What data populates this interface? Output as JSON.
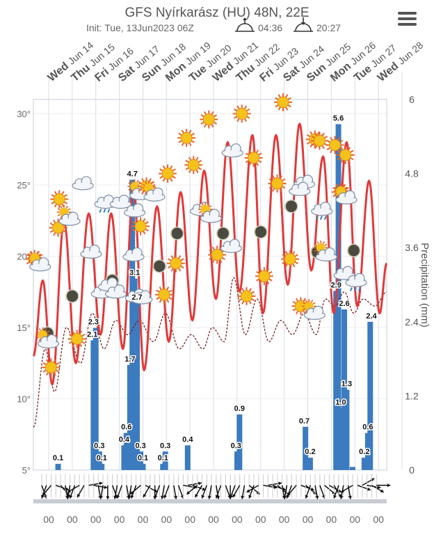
{
  "header": {
    "title": "GFS Nyírkarász (HU) 48N, 22E",
    "init": "Init: Tue, 13Jun2023 06Z",
    "sunrise": "04:36",
    "sunset": "20:27",
    "menu_icon": "hamburger-menu-icon"
  },
  "chart_data": {
    "type": "line",
    "title": "GFS Nyírkarász (HU) 48N, 22E",
    "ylabel_right": "Precipitation (mm)",
    "y_left_range": [
      5,
      31
    ],
    "y_left_ticks": [
      "5°",
      "10°",
      "15°",
      "20°",
      "25°",
      "30°"
    ],
    "y_right_range": [
      0,
      6
    ],
    "y_right_ticks": [
      "0",
      "1.2",
      "2.4",
      "3.6",
      "4.8",
      "6"
    ],
    "days": [
      {
        "dow": "Wed",
        "date": "Jun 14"
      },
      {
        "dow": "Thu",
        "date": "Jun 15"
      },
      {
        "dow": "Fri",
        "date": "Jun 16"
      },
      {
        "dow": "Sat",
        "date": "Jun 17"
      },
      {
        "dow": "Sun",
        "date": "Jun 18"
      },
      {
        "dow": "Mon",
        "date": "Jun 19"
      },
      {
        "dow": "Tue",
        "date": "Jun 20"
      },
      {
        "dow": "Wed",
        "date": "Jun 21"
      },
      {
        "dow": "Thu",
        "date": "Jun 22"
      },
      {
        "dow": "Fri",
        "date": "Jun 23"
      },
      {
        "dow": "Sat",
        "date": "Jun 24"
      },
      {
        "dow": "Sun",
        "date": "Jun 25"
      },
      {
        "dow": "Mon",
        "date": "Jun 26"
      },
      {
        "dow": "Tue",
        "date": "Jun 27"
      },
      {
        "dow": "Wed",
        "date": "Jun 28"
      }
    ],
    "x_tick_label": "00",
    "series": [
      {
        "name": "Temperature",
        "color": "#e03a3a",
        "extrema": [
          [
            0,
            13
          ],
          [
            0.4,
            18.3
          ],
          [
            0.8,
            11
          ],
          [
            1.3,
            22.5
          ],
          [
            1.8,
            12.5
          ],
          [
            2.35,
            23
          ],
          [
            2.85,
            14.5
          ],
          [
            3.3,
            23
          ],
          [
            3.8,
            13.5
          ],
          [
            4.25,
            25
          ],
          [
            4.7,
            12
          ],
          [
            5.25,
            23.5
          ],
          [
            5.75,
            14
          ],
          [
            6.25,
            24.5
          ],
          [
            6.75,
            15.5
          ],
          [
            7.25,
            26
          ],
          [
            7.75,
            17
          ],
          [
            8.25,
            28
          ],
          [
            8.75,
            17.5
          ],
          [
            9.3,
            28.5
          ],
          [
            9.75,
            16
          ],
          [
            10.3,
            28.5
          ],
          [
            10.8,
            18
          ],
          [
            11.3,
            29.3
          ],
          [
            11.8,
            19
          ],
          [
            12.3,
            27
          ],
          [
            12.75,
            16
          ],
          [
            13.3,
            28
          ],
          [
            13.75,
            16.5
          ],
          [
            14.25,
            25.3
          ],
          [
            14.7,
            16
          ],
          [
            15,
            19.5
          ]
        ]
      },
      {
        "name": "Dew point",
        "color": "#7a1f1f",
        "extrema": [
          [
            0,
            8
          ],
          [
            0.5,
            13.5
          ],
          [
            0.9,
            10.5
          ],
          [
            1.4,
            15
          ],
          [
            2,
            12.5
          ],
          [
            2.5,
            16
          ],
          [
            3,
            13.5
          ],
          [
            3.5,
            15.5
          ],
          [
            4,
            14.5
          ],
          [
            4.5,
            15.5
          ],
          [
            5.1,
            14
          ],
          [
            5.6,
            16
          ],
          [
            6.2,
            13.5
          ],
          [
            6.7,
            14.5
          ],
          [
            7.2,
            13.5
          ],
          [
            7.6,
            15
          ],
          [
            8.1,
            14
          ],
          [
            8.5,
            18.5
          ],
          [
            9,
            14.5
          ],
          [
            9.5,
            17
          ],
          [
            10,
            14
          ],
          [
            10.5,
            15.5
          ],
          [
            11,
            14.5
          ],
          [
            11.5,
            16
          ],
          [
            12,
            14.5
          ],
          [
            12.4,
            17
          ],
          [
            12.8,
            16.5
          ],
          [
            13.2,
            17.5
          ],
          [
            13.6,
            16
          ],
          [
            14,
            17
          ],
          [
            14.5,
            16.5
          ],
          [
            15,
            17.5
          ]
        ]
      },
      {
        "name": "Precipitation",
        "color": "#3c7bbf",
        "bars": [
          [
            1.05,
            0.1
          ],
          [
            2.55,
            2.1
          ],
          [
            2.65,
            2.3
          ],
          [
            2.8,
            0.3
          ],
          [
            2.9,
            0.1
          ],
          [
            3.85,
            0.4
          ],
          [
            3.95,
            0.6
          ],
          [
            4.1,
            1.7
          ],
          [
            4.2,
            4.7
          ],
          [
            4.3,
            3.1
          ],
          [
            4.4,
            2.7
          ],
          [
            4.55,
            0.3
          ],
          [
            4.65,
            0.1
          ],
          [
            5.5,
            0.1
          ],
          [
            5.6,
            0.3
          ],
          [
            6.55,
            0.4
          ],
          [
            8.65,
            0.3
          ],
          [
            8.75,
            0.9
          ],
          [
            11.55,
            0.7
          ],
          [
            11.75,
            0.2
          ],
          [
            12.85,
            2.9
          ],
          [
            12.95,
            5.6
          ],
          [
            13.1,
            1.0
          ],
          [
            13.2,
            2.6
          ],
          [
            13.3,
            1.3
          ],
          [
            13.55,
            0.05
          ],
          [
            14.05,
            0.2
          ],
          [
            14.2,
            0.6
          ],
          [
            14.3,
            2.4
          ]
        ],
        "labels": [
          [
            1.05,
            0.1,
            "0.1"
          ],
          [
            2.5,
            2.1,
            "2.1"
          ],
          [
            2.55,
            2.3,
            "2.3"
          ],
          [
            2.8,
            0.3,
            "0.3"
          ],
          [
            2.9,
            0.1,
            "0.1"
          ],
          [
            3.85,
            0.4,
            "0.4"
          ],
          [
            3.95,
            0.6,
            "0.6"
          ],
          [
            4.1,
            1.7,
            "1.7"
          ],
          [
            4.2,
            4.7,
            "4.7"
          ],
          [
            4.3,
            3.1,
            "3.1"
          ],
          [
            4.4,
            2.7,
            "2.7"
          ],
          [
            4.55,
            0.3,
            "0.3"
          ],
          [
            4.65,
            0.1,
            "0.1"
          ],
          [
            5.5,
            0.1,
            "0.1"
          ],
          [
            5.6,
            0.3,
            "0.3"
          ],
          [
            6.55,
            0.4,
            "0.4"
          ],
          [
            8.6,
            0.3,
            "0.3"
          ],
          [
            8.75,
            0.9,
            "0.9"
          ],
          [
            11.5,
            0.7,
            "0.7"
          ],
          [
            11.75,
            0.2,
            "0.2"
          ],
          [
            12.85,
            2.9,
            "2.9"
          ],
          [
            12.95,
            5.6,
            "5.6"
          ],
          [
            13.05,
            1.0,
            "1.0"
          ],
          [
            13.2,
            2.6,
            "2.6"
          ],
          [
            13.3,
            1.3,
            "1.3"
          ],
          [
            14.05,
            0.2,
            "0.2"
          ],
          [
            14.2,
            0.6,
            "0.6"
          ],
          [
            14.35,
            2.4,
            "2.4"
          ]
        ]
      }
    ],
    "weather_icons": [
      [
        "sun-icon",
        0.05,
        19.8
      ],
      [
        "partly-cloudy-icon",
        0.2,
        19.6
      ],
      [
        "moon-icon",
        0.6,
        14.6
      ],
      [
        "partly-cloudy-icon",
        0.55,
        14.2
      ],
      [
        "sun-icon",
        0.75,
        12.2
      ],
      [
        "sun-icon",
        1.1,
        24
      ],
      [
        "sun-icon",
        1.05,
        22
      ],
      [
        "moon-icon",
        1.65,
        17.2
      ],
      [
        "partly-cloudy-icon",
        1.45,
        22.8
      ],
      [
        "sun-icon",
        1.85,
        14.2
      ],
      [
        "cloud-icon",
        2.1,
        25.1
      ],
      [
        "cloud-icon",
        2.45,
        20.3
      ],
      [
        "cloud-icon",
        2.9,
        17.5
      ],
      [
        "rain-cloud-icon",
        3.05,
        23.8
      ],
      [
        "moon-icon",
        3.35,
        18.3
      ],
      [
        "cloud-icon",
        3.2,
        18
      ],
      [
        "cloud-icon",
        3.5,
        17.5
      ],
      [
        "cloud-icon",
        3.7,
        23.8
      ],
      [
        "cloud-icon",
        4.3,
        23.2
      ],
      [
        "partly-cloudy-icon",
        4.45,
        24.6
      ],
      [
        "cloud-icon",
        4.25,
        20.1
      ],
      [
        "rain-cloud-icon",
        4.35,
        17.2
      ],
      [
        "cloud-icon",
        4.6,
        17.1
      ],
      [
        "sun-icon",
        4.55,
        22.1
      ],
      [
        "sun-icon",
        4.8,
        24.9
      ],
      [
        "moon-icon",
        5.35,
        19.3
      ],
      [
        "partly-cloudy-icon",
        5.05,
        24.5
      ],
      [
        "sun-icon",
        5.55,
        17.3
      ],
      [
        "sun-icon",
        5.7,
        25.8
      ],
      [
        "moon-icon",
        6.1,
        21.6
      ],
      [
        "sun-icon",
        6.05,
        19.5
      ],
      [
        "sun-icon",
        6.5,
        28.3
      ],
      [
        "sun-icon",
        6.8,
        26.4
      ],
      [
        "cloud-icon",
        7.1,
        23.3
      ],
      [
        "partly-cloudy-icon",
        7.45,
        23
      ],
      [
        "sun-icon",
        7.45,
        29.6
      ],
      [
        "sun-icon",
        7.8,
        20.1
      ],
      [
        "moon-icon",
        8.05,
        21.6
      ],
      [
        "cloud-icon",
        8.45,
        27.4
      ],
      [
        "cloud-icon",
        8.4,
        20.7
      ],
      [
        "sun-icon",
        8.85,
        30
      ],
      [
        "sun-icon",
        9.05,
        17.2
      ],
      [
        "sun-icon",
        9.35,
        26.9
      ],
      [
        "moon-icon",
        9.65,
        21.7
      ],
      [
        "sun-icon",
        9.8,
        18.6
      ],
      [
        "sun-icon",
        10.35,
        25.1
      ],
      [
        "sun-icon",
        10.6,
        30.8
      ],
      [
        "moon-icon",
        10.95,
        23.5
      ],
      [
        "sun-icon",
        10.9,
        19.8
      ],
      [
        "cloud-icon",
        11.5,
        25.2
      ],
      [
        "cloud-icon",
        11.3,
        24.7
      ],
      [
        "sun-icon",
        11.95,
        28.2
      ],
      [
        "sun-icon",
        11.35,
        16.5
      ],
      [
        "partly-cloudy-icon",
        11.85,
        16.2
      ],
      [
        "moon-icon",
        12.05,
        20.3
      ],
      [
        "sun-icon",
        12.15,
        28.1
      ],
      [
        "rain-cloud-icon",
        12.25,
        23.3
      ],
      [
        "partly-cloudy-icon",
        12.35,
        20.3
      ],
      [
        "sun-icon",
        12.8,
        27.8
      ],
      [
        "sun-icon",
        13.05,
        24.5
      ],
      [
        "partly-cloudy-icon",
        13.2,
        24.3
      ],
      [
        "cloud-icon",
        13.2,
        18.8
      ],
      [
        "moon-icon",
        13.6,
        20.4
      ],
      [
        "rain-cloud-icon",
        13.7,
        18.3
      ],
      [
        "sun-icon",
        13.25,
        27.1
      ]
    ],
    "wind_angles": [
      160,
      200,
      220,
      110,
      140,
      170,
      190,
      200,
      240,
      210,
      80,
      100,
      170,
      190,
      180,
      160,
      190,
      200,
      170,
      190,
      200,
      230,
      120,
      210,
      180,
      200,
      190,
      200,
      170,
      160,
      100,
      80,
      110,
      230,
      210,
      200,
      190,
      170,
      200,
      160,
      180,
      200,
      210,
      190,
      130,
      200,
      240,
      100,
      80,
      110,
      130,
      170,
      190,
      200,
      220,
      110,
      130,
      200,
      170,
      160,
      130,
      120,
      150,
      200,
      190,
      170,
      240,
      110,
      60,
      100,
      120,
      90
    ]
  }
}
